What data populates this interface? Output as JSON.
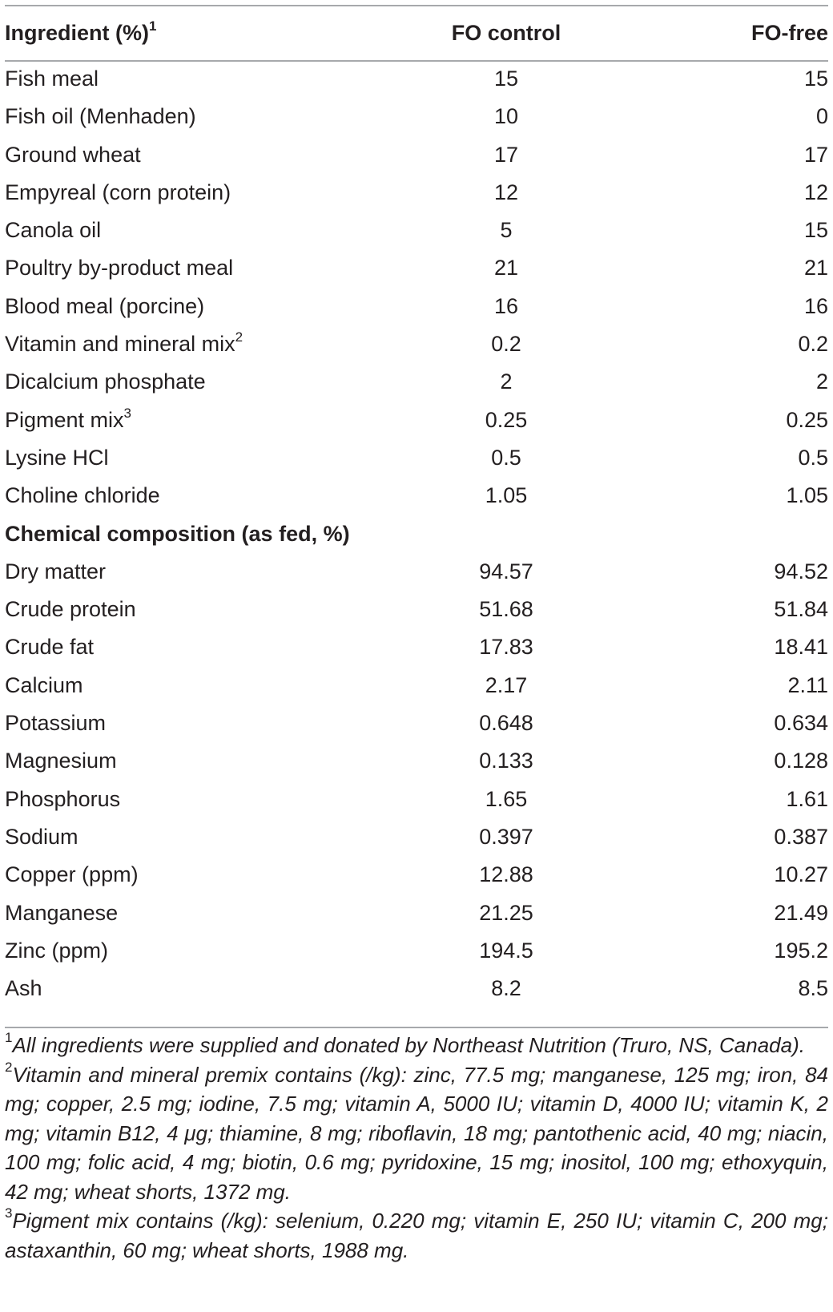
{
  "header": {
    "ingredient": "Ingredient (%)",
    "ingredient_note": "1",
    "fo_control": "FO control",
    "fo_free": "FO-free"
  },
  "ingredients": [
    {
      "name": "Fish meal",
      "sup": "",
      "fo_control": "15",
      "fo_free": "15"
    },
    {
      "name": "Fish oil (Menhaden)",
      "sup": "",
      "fo_control": "10",
      "fo_free": "0"
    },
    {
      "name": "Ground wheat",
      "sup": "",
      "fo_control": "17",
      "fo_free": "17"
    },
    {
      "name": "Empyreal (corn protein)",
      "sup": "",
      "fo_control": "12",
      "fo_free": "12"
    },
    {
      "name": "Canola oil",
      "sup": "",
      "fo_control": "5",
      "fo_free": "15"
    },
    {
      "name": "Poultry by-product meal",
      "sup": "",
      "fo_control": "21",
      "fo_free": "21"
    },
    {
      "name": "Blood meal (porcine)",
      "sup": "",
      "fo_control": "16",
      "fo_free": "16"
    },
    {
      "name": "Vitamin and mineral mix",
      "sup": "2",
      "fo_control": "0.2",
      "fo_free": "0.2"
    },
    {
      "name": "Dicalcium phosphate",
      "sup": "",
      "fo_control": "2",
      "fo_free": "2"
    },
    {
      "name": "Pigment mix",
      "sup": "3",
      "fo_control": "0.25",
      "fo_free": "0.25"
    },
    {
      "name": "Lysine HCl",
      "sup": "",
      "fo_control": "0.5",
      "fo_free": "0.5"
    },
    {
      "name": "Choline chloride",
      "sup": "",
      "fo_control": "1.05",
      "fo_free": "1.05"
    }
  ],
  "composition_heading": "Chemical composition (as fed, %)",
  "composition": [
    {
      "name": "Dry matter",
      "fo_control": "94.57",
      "fo_free": "94.52"
    },
    {
      "name": "Crude protein",
      "fo_control": "51.68",
      "fo_free": "51.84"
    },
    {
      "name": "Crude fat",
      "fo_control": "17.83",
      "fo_free": "18.41"
    },
    {
      "name": "Calcium",
      "fo_control": "2.17",
      "fo_free": "2.11"
    },
    {
      "name": "Potassium",
      "fo_control": "0.648",
      "fo_free": "0.634"
    },
    {
      "name": "Magnesium",
      "fo_control": "0.133",
      "fo_free": "0.128"
    },
    {
      "name": "Phosphorus",
      "fo_control": "1.65",
      "fo_free": "1.61"
    },
    {
      "name": "Sodium",
      "fo_control": "0.397",
      "fo_free": "0.387"
    },
    {
      "name": "Copper (ppm)",
      "fo_control": "12.88",
      "fo_free": "10.27"
    },
    {
      "name": "Manganese",
      "fo_control": "21.25",
      "fo_free": "21.49"
    },
    {
      "name": "Zinc (ppm)",
      "fo_control": "194.5",
      "fo_free": "195.2"
    },
    {
      "name": "Ash",
      "fo_control": "8.2",
      "fo_free": "8.5"
    }
  ],
  "footnotes": [
    {
      "mark": "1",
      "text": "All ingredients were supplied and donated by Northeast Nutrition (Truro, NS, Canada)."
    },
    {
      "mark": "2",
      "text": "Vitamin and mineral premix contains (/kg): zinc, 77.5 mg; manganese, 125 mg; iron, 84 mg; copper, 2.5 mg; iodine, 7.5 mg; vitamin A, 5000 IU; vitamin D, 4000 IU; vitamin K, 2 mg; vitamin B12, 4 μg; thiamine, 8 mg; riboflavin, 18 mg; pantothenic acid, 40 mg; niacin, 100 mg; folic acid, 4 mg; biotin, 0.6 mg; pyridoxine, 15 mg; inositol, 100 mg; ethoxyquin, 42 mg; wheat shorts, 1372 mg."
    },
    {
      "mark": "3",
      "text": "Pigment mix contains (/kg): selenium, 0.220 mg; vitamin E, 250 IU; vitamin C, 200 mg; astaxanthin, 60 mg; wheat shorts, 1988 mg."
    }
  ]
}
